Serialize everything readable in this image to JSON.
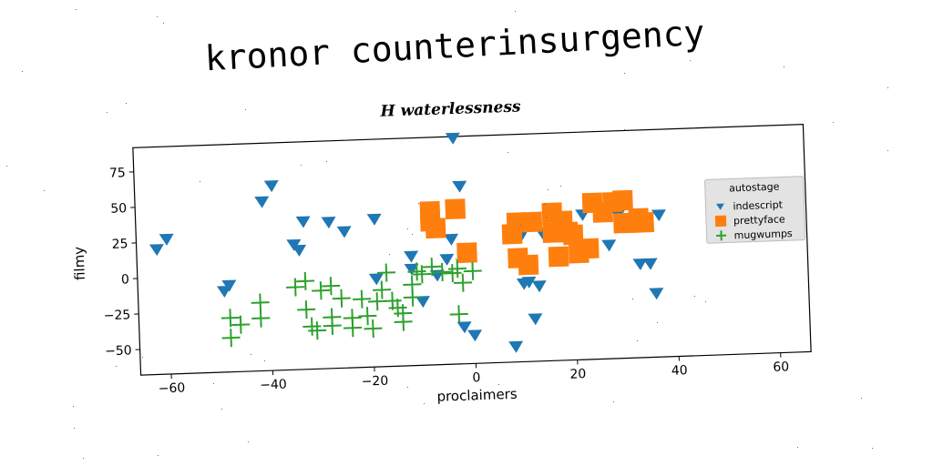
{
  "title": "kronor counterinsurgency",
  "chart_data": {
    "type": "scatter",
    "title": "H waterlessness",
    "xlabel": "proclaimers",
    "ylabel": "filmy",
    "xlim": [
      -66,
      66
    ],
    "ylim": [
      -68,
      92
    ],
    "xticks": [
      -60,
      -40,
      -20,
      0,
      20,
      40,
      60
    ],
    "yticks": [
      -50,
      -25,
      0,
      25,
      50,
      75
    ],
    "grid": false,
    "legend": {
      "title": "autostage",
      "placement": "right"
    },
    "series": [
      {
        "name": "indescript",
        "color": "#1f77b4",
        "marker": "triangle-down",
        "points": [
          [
            -62,
            20
          ],
          [
            -60,
            27
          ],
          [
            -41,
            51
          ],
          [
            -39,
            62
          ],
          [
            -49,
            -11
          ],
          [
            -48,
            -7
          ],
          [
            -35,
            20
          ],
          [
            -34,
            16
          ],
          [
            -33,
            36
          ],
          [
            -28,
            35
          ],
          [
            -25,
            28
          ],
          [
            -19,
            36
          ],
          [
            -19,
            -6
          ],
          [
            -12,
            9
          ],
          [
            -12,
            0
          ],
          [
            -10,
            -23
          ],
          [
            -7,
            -5
          ],
          [
            -4,
            20
          ],
          [
            -5,
            6
          ],
          [
            -3,
            91
          ],
          [
            -2,
            57
          ],
          [
            -2,
            -42
          ],
          [
            0,
            -48
          ],
          [
            8,
            -57
          ],
          [
            10,
            22
          ],
          [
            10,
            -13
          ],
          [
            11,
            -12
          ],
          [
            12,
            -38
          ],
          [
            13,
            -15
          ],
          [
            14,
            22
          ],
          [
            22,
            34
          ],
          [
            27,
            12
          ],
          [
            29,
            33
          ],
          [
            33,
            -2
          ],
          [
            35,
            -2
          ],
          [
            36,
            -23
          ],
          [
            37,
            32
          ]
        ]
      },
      {
        "name": "prettyface",
        "color": "#ff7f0e",
        "marker": "square",
        "points": [
          [
            -8,
            40
          ],
          [
            -8,
            33
          ],
          [
            -7,
            28
          ],
          [
            -3,
            41
          ],
          [
            -1,
            10
          ],
          [
            8,
            22
          ],
          [
            9,
            30
          ],
          [
            9,
            5
          ],
          [
            11,
            0
          ],
          [
            12,
            30
          ],
          [
            16,
            36
          ],
          [
            16,
            22
          ],
          [
            17,
            5
          ],
          [
            18,
            30
          ],
          [
            19,
            22
          ],
          [
            20,
            20
          ],
          [
            21,
            7
          ],
          [
            23,
            10
          ],
          [
            24,
            42
          ],
          [
            26,
            35
          ],
          [
            28,
            42
          ],
          [
            30,
            43
          ],
          [
            30,
            27
          ],
          [
            32,
            27
          ],
          [
            33,
            30
          ],
          [
            34,
            27
          ]
        ]
      },
      {
        "name": "mugwumps",
        "color": "#2ca02c",
        "marker": "plus",
        "points": [
          [
            -48,
            -30
          ],
          [
            -48,
            -44
          ],
          [
            -46,
            -35
          ],
          [
            -42,
            -20
          ],
          [
            -42,
            -31
          ],
          [
            -35,
            -10
          ],
          [
            -33,
            -6
          ],
          [
            -33,
            -26
          ],
          [
            -32,
            -38
          ],
          [
            -31,
            -41
          ],
          [
            -30,
            -13
          ],
          [
            -28,
            -10
          ],
          [
            -28,
            -32
          ],
          [
            -28,
            -38
          ],
          [
            -26,
            -19
          ],
          [
            -24,
            -33
          ],
          [
            -24,
            -40
          ],
          [
            -22,
            -20
          ],
          [
            -21,
            -32
          ],
          [
            -20,
            -41
          ],
          [
            -19,
            -22
          ],
          [
            -18,
            -14
          ],
          [
            -17,
            -2
          ],
          [
            -16,
            -22
          ],
          [
            -15,
            -27
          ],
          [
            -14,
            -37
          ],
          [
            -14,
            -31
          ],
          [
            -12,
            -11
          ],
          [
            -11,
            -2
          ],
          [
            -10,
            -4
          ],
          [
            -8,
            1
          ],
          [
            -6,
            -3
          ],
          [
            -4,
            -4
          ],
          [
            -3,
            -1
          ],
          [
            -2,
            -11
          ],
          [
            0,
            -3
          ],
          [
            -3,
            -33
          ],
          [
            -12,
            -20
          ]
        ]
      }
    ]
  }
}
